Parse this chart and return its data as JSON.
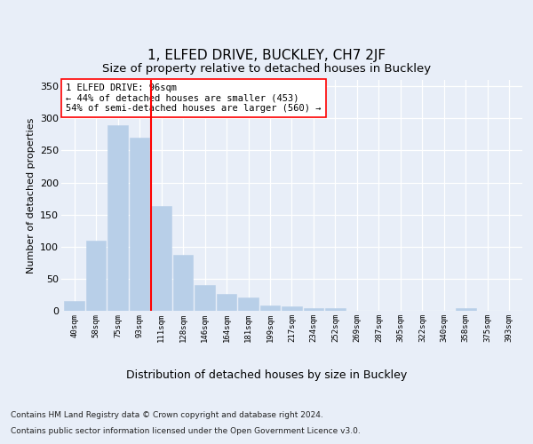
{
  "title1": "1, ELFED DRIVE, BUCKLEY, CH7 2JF",
  "title2": "Size of property relative to detached houses in Buckley",
  "xlabel": "Distribution of detached houses by size in Buckley",
  "ylabel": "Number of detached properties",
  "bar_labels": [
    "40sqm",
    "58sqm",
    "75sqm",
    "93sqm",
    "111sqm",
    "128sqm",
    "146sqm",
    "164sqm",
    "181sqm",
    "199sqm",
    "217sqm",
    "234sqm",
    "252sqm",
    "269sqm",
    "287sqm",
    "305sqm",
    "322sqm",
    "340sqm",
    "358sqm",
    "375sqm",
    "393sqm"
  ],
  "bar_values": [
    15,
    109,
    290,
    270,
    163,
    87,
    40,
    26,
    21,
    8,
    7,
    4,
    4,
    0,
    0,
    0,
    0,
    0,
    4,
    0,
    0
  ],
  "bar_color": "#b8cfe8",
  "bar_edgecolor": "#b8cfe8",
  "red_line_x": 3.52,
  "annotation_text": "1 ELFED DRIVE: 96sqm\n← 44% of detached houses are smaller (453)\n54% of semi-detached houses are larger (560) →",
  "footer1": "Contains HM Land Registry data © Crown copyright and database right 2024.",
  "footer2": "Contains public sector information licensed under the Open Government Licence v3.0.",
  "ylim": [
    0,
    360
  ],
  "yticks": [
    0,
    50,
    100,
    150,
    200,
    250,
    300,
    350
  ],
  "background_color": "#e8eef8",
  "plot_bg_color": "#e8eef8",
  "grid_color": "#ffffff",
  "title1_fontsize": 11,
  "title2_fontsize": 9.5,
  "annot_fontsize": 7.5,
  "footer_fontsize": 6.5,
  "ylabel_fontsize": 8,
  "xlabel_fontsize": 9
}
